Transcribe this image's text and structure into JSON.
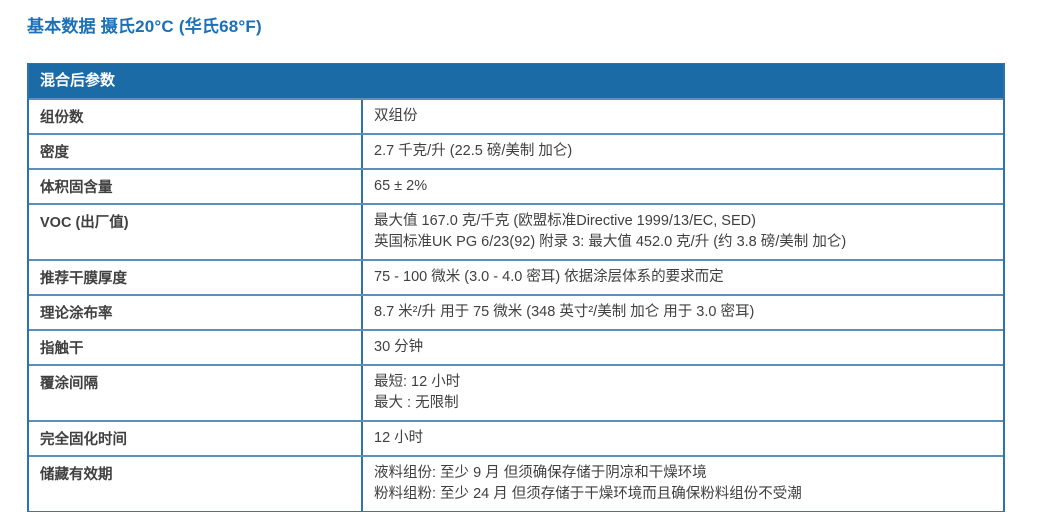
{
  "page": {
    "title": "基本数据 摄氏20°C (华氏68°F)"
  },
  "colors": {
    "title_blue": "#1c70b6",
    "header_bg": "#1b6ba7",
    "header_text": "#ffffff",
    "border_blue": "#2e72aa",
    "separator_blue": "#5a8fbe",
    "cell_text": "#404040"
  },
  "table": {
    "header_title": "混合后参数",
    "rows": [
      {
        "label": "组份数",
        "values": [
          "双组份"
        ]
      },
      {
        "label": "密度",
        "values": [
          "2.7 千克/升 (22.5 磅/美制 加仑)"
        ]
      },
      {
        "label": "体积固含量",
        "values": [
          "65 ± 2%"
        ]
      },
      {
        "label": "VOC (出厂值)",
        "values": [
          "最大值 167.0 克/千克 (欧盟标准Directive 1999/13/EC, SED)",
          "英国标准UK PG 6/23(92) 附录 3: 最大值 452.0 克/升 (约 3.8 磅/美制 加仑)"
        ]
      },
      {
        "label": "推荐干膜厚度",
        "values": [
          "75 - 100 微米 (3.0 - 4.0 密耳) 依据涂层体系的要求而定"
        ]
      },
      {
        "label": "理论涂布率",
        "values": [
          "8.7 米²/升 用于 75 微米 (348 英寸²/美制 加仑 用于 3.0 密耳)"
        ]
      },
      {
        "label": "指触干",
        "values": [
          "30 分钟"
        ]
      },
      {
        "label": "覆涂间隔",
        "values": [
          "最短: 12 小时",
          "最大 : 无限制"
        ]
      },
      {
        "label": "完全固化时间",
        "values": [
          "12 小时"
        ]
      },
      {
        "label": "储藏有效期",
        "values": [
          "液料组份: 至少 9 月 但须确保存储于阴凉和干燥环境",
          "粉料组粉: 至少 24 月 但须存储于干燥环境而且确保粉料组份不受潮"
        ]
      }
    ]
  }
}
